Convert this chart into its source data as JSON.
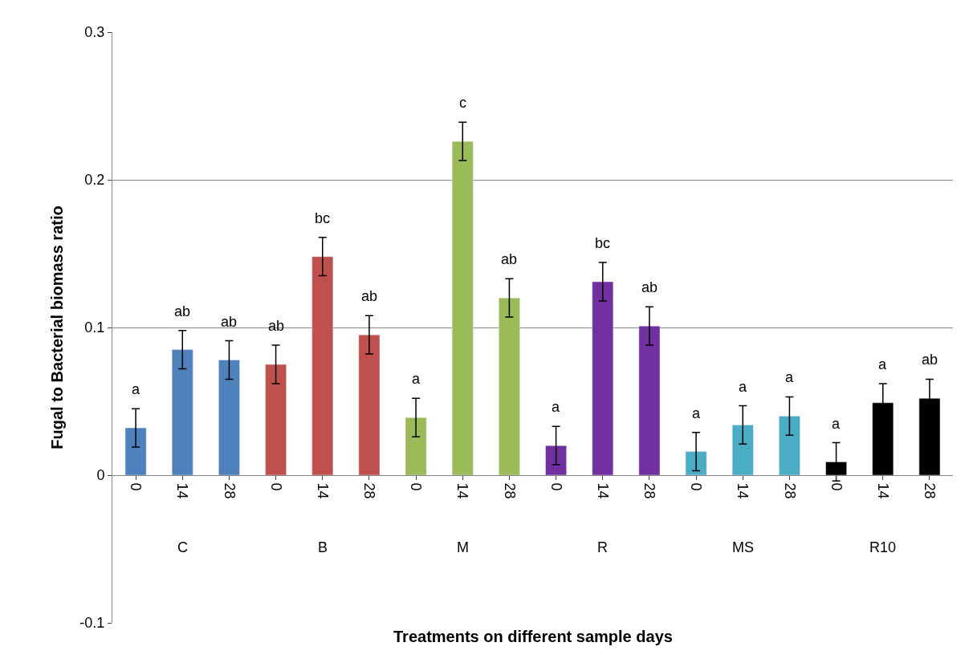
{
  "chart_data": {
    "type": "bar",
    "xlabel": "Treatments on different sample days",
    "ylabel": "Fugal to Bacterial biomass ratio",
    "categories": [
      "0",
      "14",
      "28",
      "0",
      "14",
      "28",
      "0",
      "14",
      "28",
      "0",
      "14",
      "28",
      "0",
      "14",
      "28",
      "0",
      "14",
      "28"
    ],
    "values": [
      0.032,
      0.085,
      0.078,
      0.075,
      0.148,
      0.095,
      0.039,
      0.226,
      0.12,
      0.02,
      0.131,
      0.101,
      0.016,
      0.034,
      0.04,
      0.009,
      0.049,
      0.052
    ],
    "errors": [
      0.013,
      0.013,
      0.013,
      0.013,
      0.013,
      0.013,
      0.013,
      0.013,
      0.013,
      0.013,
      0.013,
      0.013,
      0.013,
      0.013,
      0.013,
      0.013,
      0.013,
      0.013
    ],
    "colors": [
      "#4f81bd",
      "#4f81bd",
      "#4f81bd",
      "#c0504d",
      "#c0504d",
      "#c0504d",
      "#9bbb59",
      "#9bbb59",
      "#9bbb59",
      "#7030a0",
      "#7030a0",
      "#7030a0",
      "#4bacc6",
      "#4bacc6",
      "#4bacc6",
      "#000000",
      "#000000",
      "#000000"
    ],
    "value_labels": [
      "a",
      "ab",
      "ab",
      "ab",
      "bc",
      "ab",
      "a",
      "c",
      "ab",
      "a",
      "bc",
      "ab",
      "a",
      "a",
      "a",
      "a",
      "a",
      "ab"
    ],
    "annotations": [
      "C",
      "B",
      "M",
      "R",
      "MS",
      "R10"
    ],
    "ylim": [
      -0.1,
      0.3
    ],
    "yticks": [
      -0.1,
      0,
      0.1,
      0.2,
      0.3
    ],
    "grid": "y"
  }
}
